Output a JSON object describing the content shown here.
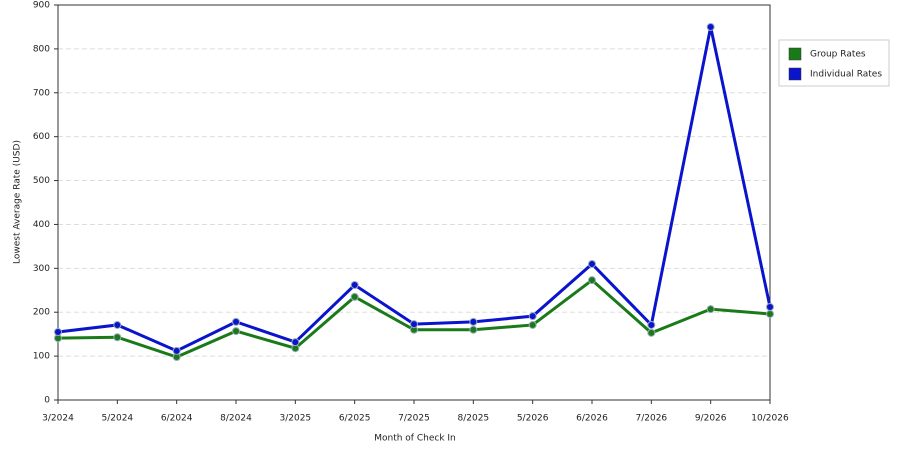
{
  "chart_data": {
    "type": "line",
    "x_label": "Month of Check In",
    "y_label": "Lowest Average Rate (USD)",
    "categories": [
      "3/2024",
      "5/2024",
      "6/2024",
      "8/2024",
      "3/2025",
      "6/2025",
      "7/2025",
      "8/2025",
      "5/2026",
      "6/2026",
      "7/2026",
      "9/2026",
      "10/2026"
    ],
    "series": [
      {
        "name": "Group Rates",
        "color": "#1a7a1a",
        "values": [
          141,
          143,
          98,
          157,
          118,
          235,
          160,
          160,
          171,
          273,
          153,
          207,
          196
        ]
      },
      {
        "name": "Individual Rates",
        "color": "#0a14cc",
        "values": [
          155,
          171,
          112,
          178,
          132,
          262,
          173,
          178,
          191,
          310,
          171,
          850,
          212
        ]
      }
    ],
    "ylim": [
      0,
      900
    ],
    "yticks": [
      0,
      100,
      200,
      300,
      400,
      500,
      600,
      700,
      800,
      900
    ],
    "grid": true,
    "legend": "right"
  }
}
